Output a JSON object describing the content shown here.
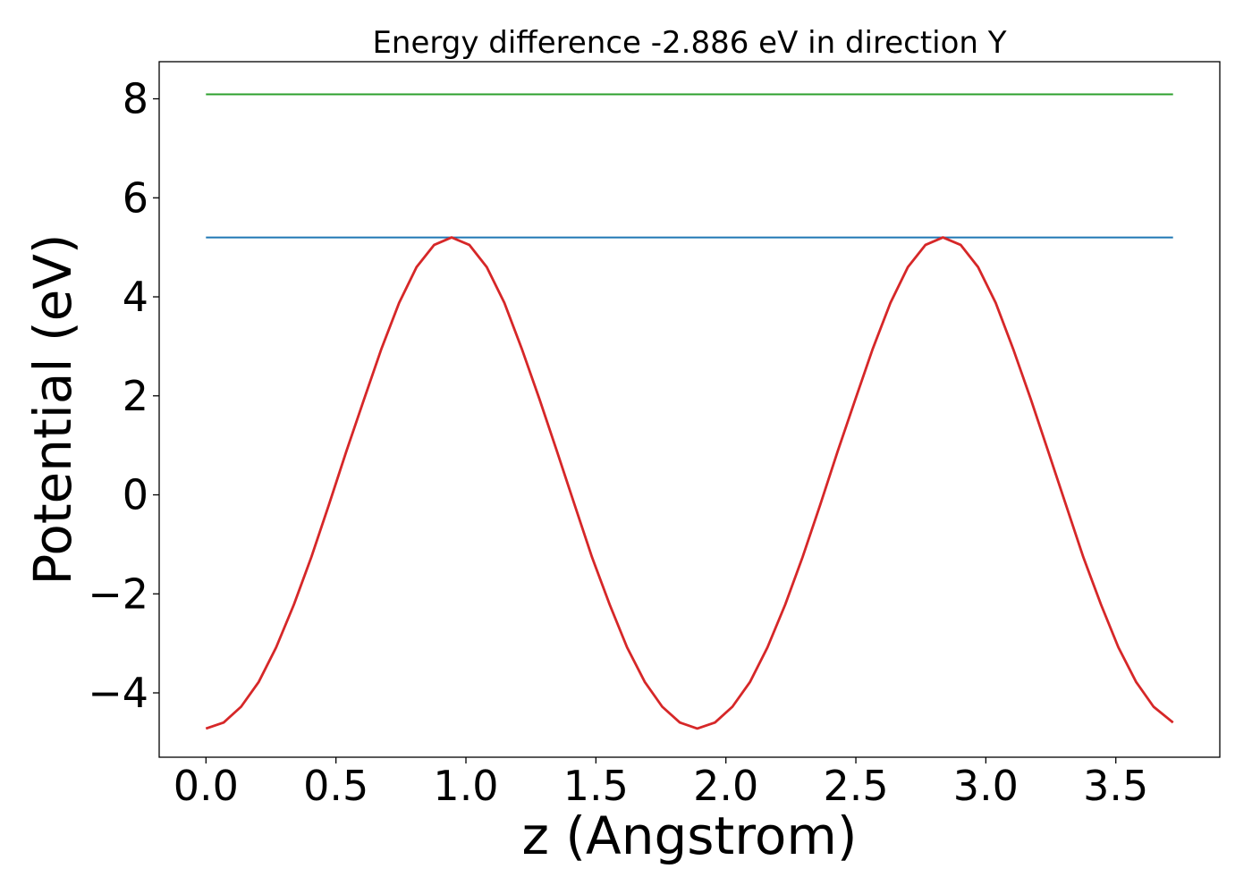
{
  "chart_data": {
    "type": "line",
    "title": "Energy difference -2.886 eV in direction Y",
    "xlabel": "z (Angstrom)",
    "ylabel": "Potential (eV)",
    "xlim": [
      -0.18,
      3.9
    ],
    "ylim": [
      -5.3,
      8.75
    ],
    "grid": false,
    "xticks": [
      0.0,
      0.5,
      1.0,
      1.5,
      2.0,
      2.5,
      3.0,
      3.5
    ],
    "xtick_labels": [
      "0.0",
      "0.5",
      "1.0",
      "1.5",
      "2.0",
      "2.5",
      "3.0",
      "3.5"
    ],
    "yticks": [
      -4,
      -2,
      0,
      2,
      4,
      6,
      8
    ],
    "ytick_labels": [
      "−4",
      "−2",
      "0",
      "2",
      "4",
      "6",
      "8"
    ],
    "series": [
      {
        "color": "#2ca02c",
        "x": [
          0.0,
          3.72
        ],
        "y": [
          8.09,
          8.09
        ]
      },
      {
        "color": "#1f77b4",
        "x": [
          0.0,
          3.72
        ],
        "y": [
          5.2,
          5.2
        ]
      },
      {
        "color": "#d62728",
        "x": [
          0.0,
          0.068,
          0.135,
          0.203,
          0.27,
          0.338,
          0.405,
          0.473,
          0.54,
          0.608,
          0.675,
          0.743,
          0.81,
          0.878,
          0.945,
          1.013,
          1.08,
          1.148,
          1.215,
          1.283,
          1.35,
          1.418,
          1.485,
          1.553,
          1.62,
          1.688,
          1.755,
          1.823,
          1.89,
          1.958,
          2.025,
          2.093,
          2.16,
          2.228,
          2.295,
          2.363,
          2.43,
          2.498,
          2.565,
          2.633,
          2.7,
          2.768,
          2.835,
          2.903,
          2.97,
          3.038,
          3.105,
          3.173,
          3.24,
          3.308,
          3.375,
          3.443,
          3.51,
          3.578,
          3.645,
          3.72
        ],
        "y": [
          -4.72,
          -4.6,
          -4.28,
          -3.78,
          -3.08,
          -2.22,
          -1.26,
          -0.2,
          0.88,
          1.93,
          2.95,
          3.88,
          4.6,
          5.05,
          5.2,
          5.05,
          4.6,
          3.88,
          2.95,
          1.93,
          0.88,
          -0.2,
          -1.26,
          -2.22,
          -3.08,
          -3.78,
          -4.28,
          -4.6,
          -4.72,
          -4.6,
          -4.28,
          -3.78,
          -3.08,
          -2.22,
          -1.26,
          -0.2,
          0.88,
          1.93,
          2.95,
          3.88,
          4.6,
          5.05,
          5.2,
          5.05,
          4.6,
          3.88,
          2.95,
          1.93,
          0.88,
          -0.2,
          -1.26,
          -2.22,
          -3.08,
          -3.78,
          -4.28,
          -4.6
        ]
      }
    ]
  }
}
